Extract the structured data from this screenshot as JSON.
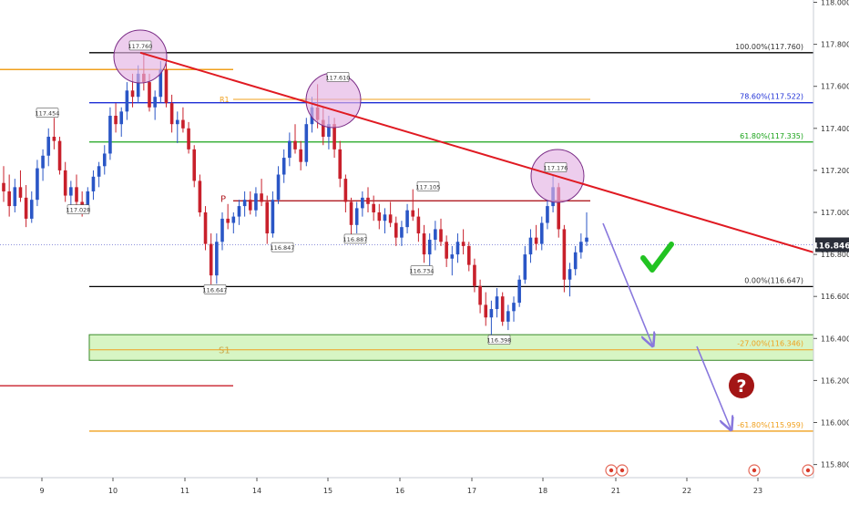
{
  "chart_data": {
    "type": "candlestick",
    "symbol_last": "116.846",
    "colors": {
      "up": "#2a56c6",
      "down": "#c8202b",
      "fib_black": "#000000",
      "fib_blue": "#1e2fd6",
      "fib_green": "#1aa31a",
      "fib_orange": "#f0a01e",
      "trendline": "#e01a22",
      "pivot": "#b01c22",
      "zone_fill": "#c9f2b0",
      "zone_border": "#3a8a2a",
      "highlight": "#e3b2e3",
      "highlight_stroke": "#7a2c86",
      "arrow": "#8877dd",
      "check": "#22c322",
      "question": "#a31515",
      "price_tag_bg": "#2a2e39"
    },
    "y_axis": {
      "min": 115.7,
      "max": 118.0,
      "ticks": [
        "118.000",
        "117.800",
        "117.600",
        "117.400",
        "117.200",
        "117.000",
        "116.800",
        "116.600",
        "116.400",
        "116.200",
        "116.000",
        "115.800"
      ]
    },
    "x_axis": {
      "ticks": [
        "9",
        "10",
        "11",
        "14",
        "15",
        "16",
        "17",
        "18",
        "21",
        "22",
        "23"
      ]
    },
    "fib_levels": [
      {
        "name": "100",
        "price": 117.76,
        "label": "100.00%(117.760)",
        "color": "#000000"
      },
      {
        "name": "786",
        "price": 117.522,
        "label": "78.60%(117.522)",
        "color": "#1e2fd6"
      },
      {
        "name": "618",
        "price": 117.335,
        "label": "61.80%(117.335)",
        "color": "#1aa31a"
      },
      {
        "name": "0",
        "price": 116.647,
        "label": "0.00%(116.647)",
        "color": "#000000"
      },
      {
        "name": "m27",
        "price": 116.346,
        "label": "-27.00%(116.346)",
        "color": "#f0a01e"
      },
      {
        "name": "m618",
        "price": 115.959,
        "label": "-61.80%(115.959)",
        "color": "#f0a01e"
      }
    ],
    "extra_lines": [
      {
        "name": "left-orange",
        "price": 117.68,
        "color": "#f0a01e"
      },
      {
        "name": "r1",
        "price": 117.538,
        "color": "#f0a01e"
      },
      {
        "name": "pivot",
        "price": 117.055,
        "color": "#b01c22"
      },
      {
        "name": "left-red",
        "price": 116.175,
        "color": "#c8202b"
      }
    ],
    "line_labels": {
      "r1": "R1",
      "pivot": "P",
      "s1": "S1"
    },
    "swing_labels": [
      "117.760",
      "117.610",
      "117.176",
      "117.454",
      "117.028",
      "117.105",
      "116.847",
      "116.887",
      "116.734",
      "116.647",
      "116.398"
    ],
    "zone": {
      "top": 116.418,
      "bottom": 116.296
    },
    "candles": [
      [
        117.14,
        117.22,
        117.05,
        117.1
      ],
      [
        117.1,
        117.18,
        116.98,
        117.03
      ],
      [
        117.03,
        117.16,
        117.0,
        117.12
      ],
      [
        117.12,
        117.2,
        117.05,
        117.07
      ],
      [
        117.07,
        117.13,
        116.93,
        116.97
      ],
      [
        116.97,
        117.1,
        116.95,
        117.06
      ],
      [
        117.06,
        117.25,
        117.03,
        117.21
      ],
      [
        117.21,
        117.3,
        117.15,
        117.27
      ],
      [
        117.27,
        117.4,
        117.22,
        117.36
      ],
      [
        117.36,
        117.45,
        117.3,
        117.34
      ],
      [
        117.34,
        117.36,
        117.18,
        117.2
      ],
      [
        117.2,
        117.24,
        117.05,
        117.08
      ],
      [
        117.08,
        117.15,
        117.02,
        117.12
      ],
      [
        117.12,
        117.18,
        117.03,
        117.05
      ],
      [
        117.05,
        117.1,
        116.98,
        117.02
      ],
      [
        117.02,
        117.12,
        117.0,
        117.1
      ],
      [
        117.1,
        117.2,
        117.06,
        117.17
      ],
      [
        117.17,
        117.24,
        117.12,
        117.22
      ],
      [
        117.22,
        117.32,
        117.18,
        117.28
      ],
      [
        117.28,
        117.5,
        117.25,
        117.46
      ],
      [
        117.46,
        117.52,
        117.38,
        117.42
      ],
      [
        117.42,
        117.5,
        117.36,
        117.48
      ],
      [
        117.48,
        117.62,
        117.44,
        117.58
      ],
      [
        117.58,
        117.66,
        117.5,
        117.55
      ],
      [
        117.55,
        117.7,
        117.52,
        117.66
      ],
      [
        117.66,
        117.76,
        117.58,
        117.62
      ],
      [
        117.62,
        117.66,
        117.48,
        117.5
      ],
      [
        117.5,
        117.58,
        117.44,
        117.55
      ],
      [
        117.55,
        117.72,
        117.52,
        117.68
      ],
      [
        117.68,
        117.71,
        117.5,
        117.52
      ],
      [
        117.52,
        117.56,
        117.38,
        117.42
      ],
      [
        117.42,
        117.48,
        117.33,
        117.44
      ],
      [
        117.44,
        117.5,
        117.38,
        117.4
      ],
      [
        117.4,
        117.43,
        117.28,
        117.3
      ],
      [
        117.3,
        117.32,
        117.12,
        117.15
      ],
      [
        117.15,
        117.18,
        116.98,
        117.0
      ],
      [
        117.0,
        117.03,
        116.82,
        116.85
      ],
      [
        116.85,
        116.9,
        116.65,
        116.7
      ],
      [
        116.7,
        116.9,
        116.66,
        116.86
      ],
      [
        116.86,
        117.0,
        116.82,
        116.97
      ],
      [
        116.97,
        117.04,
        116.92,
        116.95
      ],
      [
        116.95,
        117.0,
        116.9,
        116.98
      ],
      [
        116.98,
        117.06,
        116.94,
        117.03
      ],
      [
        117.03,
        117.1,
        116.98,
        117.06
      ],
      [
        117.06,
        117.1,
        116.99,
        117.01
      ],
      [
        117.01,
        117.12,
        116.98,
        117.09
      ],
      [
        117.09,
        117.16,
        117.03,
        117.05
      ],
      [
        117.05,
        117.08,
        116.85,
        116.9
      ],
      [
        116.9,
        117.1,
        116.88,
        117.06
      ],
      [
        117.06,
        117.22,
        117.04,
        117.18
      ],
      [
        117.18,
        117.3,
        117.14,
        117.26
      ],
      [
        117.26,
        117.38,
        117.22,
        117.34
      ],
      [
        117.34,
        117.42,
        117.28,
        117.3
      ],
      [
        117.3,
        117.34,
        117.2,
        117.24
      ],
      [
        117.24,
        117.45,
        117.22,
        117.42
      ],
      [
        117.42,
        117.55,
        117.38,
        117.5
      ],
      [
        117.5,
        117.61,
        117.4,
        117.44
      ],
      [
        117.44,
        117.5,
        117.32,
        117.36
      ],
      [
        117.36,
        117.46,
        117.3,
        117.42
      ],
      [
        117.42,
        117.45,
        117.26,
        117.3
      ],
      [
        117.3,
        117.34,
        117.12,
        117.16
      ],
      [
        117.16,
        117.18,
        117.0,
        117.05
      ],
      [
        117.05,
        117.07,
        116.89,
        116.94
      ],
      [
        116.94,
        117.05,
        116.9,
        117.02
      ],
      [
        117.02,
        117.1,
        116.98,
        117.07
      ],
      [
        117.07,
        117.12,
        117.0,
        117.04
      ],
      [
        117.04,
        117.08,
        116.96,
        117.0
      ],
      [
        117.0,
        117.04,
        116.92,
        116.96
      ],
      [
        116.96,
        117.02,
        116.9,
        116.99
      ],
      [
        116.99,
        117.05,
        116.93,
        116.95
      ],
      [
        116.95,
        116.98,
        116.84,
        116.88
      ],
      [
        116.88,
        116.96,
        116.84,
        116.93
      ],
      [
        116.93,
        117.04,
        116.9,
        117.01
      ],
      [
        117.01,
        117.11,
        116.96,
        116.98
      ],
      [
        116.98,
        117.02,
        116.86,
        116.9
      ],
      [
        116.9,
        116.94,
        116.76,
        116.8
      ],
      [
        116.8,
        116.9,
        116.74,
        116.87
      ],
      [
        116.87,
        116.96,
        116.82,
        116.92
      ],
      [
        116.92,
        116.97,
        116.84,
        116.86
      ],
      [
        116.86,
        116.89,
        116.74,
        116.78
      ],
      [
        116.78,
        116.84,
        116.7,
        116.8
      ],
      [
        116.8,
        116.9,
        116.76,
        116.86
      ],
      [
        116.86,
        116.92,
        116.8,
        116.84
      ],
      [
        116.84,
        116.86,
        116.72,
        116.75
      ],
      [
        116.75,
        116.78,
        116.62,
        116.65
      ],
      [
        116.65,
        116.68,
        116.52,
        116.56
      ],
      [
        116.56,
        116.62,
        116.46,
        116.5
      ],
      [
        116.5,
        116.58,
        116.4,
        116.54
      ],
      [
        116.54,
        116.64,
        116.5,
        116.6
      ],
      [
        116.6,
        116.62,
        116.46,
        116.48
      ],
      [
        116.48,
        116.56,
        116.44,
        116.53
      ],
      [
        116.53,
        116.6,
        116.48,
        116.57
      ],
      [
        116.57,
        116.7,
        116.55,
        116.68
      ],
      [
        116.68,
        116.84,
        116.66,
        116.8
      ],
      [
        116.8,
        116.92,
        116.76,
        116.88
      ],
      [
        116.88,
        116.94,
        116.82,
        116.85
      ],
      [
        116.85,
        116.98,
        116.82,
        116.95
      ],
      [
        116.95,
        117.06,
        116.92,
        117.03
      ],
      [
        117.03,
        117.18,
        117.0,
        117.12
      ],
      [
        117.12,
        117.14,
        116.88,
        116.92
      ],
      [
        116.92,
        116.94,
        116.62,
        116.68
      ],
      [
        116.68,
        116.76,
        116.6,
        116.73
      ],
      [
        116.73,
        116.84,
        116.7,
        116.81
      ],
      [
        116.81,
        116.9,
        116.78,
        116.86
      ],
      [
        116.86,
        117.0,
        116.84,
        116.88
      ]
    ]
  }
}
